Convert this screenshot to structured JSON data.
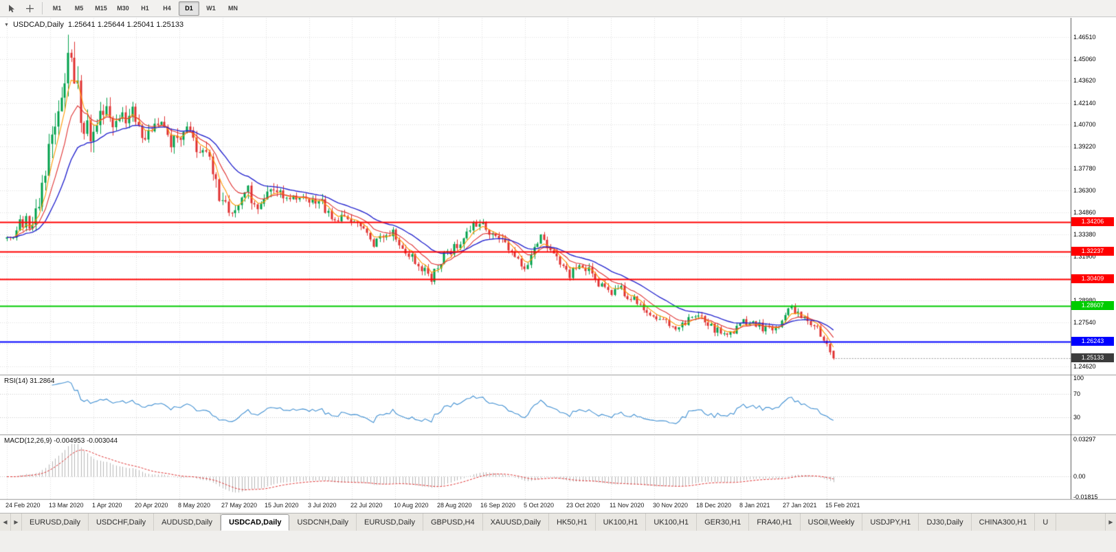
{
  "toolbar": {
    "tools": [
      {
        "name": "cursor"
      },
      {
        "name": "crosshair"
      }
    ],
    "timeframes": [
      {
        "label": "M1",
        "active": false
      },
      {
        "label": "M5",
        "active": false
      },
      {
        "label": "M15",
        "active": false
      },
      {
        "label": "M30",
        "active": false
      },
      {
        "label": "H1",
        "active": false
      },
      {
        "label": "H4",
        "active": false
      },
      {
        "label": "D1",
        "active": true
      },
      {
        "label": "W1",
        "active": false
      },
      {
        "label": "MN",
        "active": false
      }
    ]
  },
  "chart": {
    "title": "USDCAD,Daily",
    "ohlc_text": "1.25641 1.25644 1.25041 1.25133"
  },
  "rsi_panel": {
    "label": "RSI(14)",
    "value": "31.2864",
    "axis_labels": [
      "100",
      "70",
      "30"
    ]
  },
  "macd_panel": {
    "label": "MACD(12,26,9)",
    "values": "-0.004953 -0.003044",
    "axis_labels": [
      "0.03297",
      "0.00",
      "-0.01815"
    ]
  },
  "tab_bar": {
    "tabs": [
      "EURUSD,Daily",
      "USDCHF,Daily",
      "AUDUSD,Daily",
      "USDCAD,Daily",
      "USDCNH,Daily",
      "EURUSD,Daily",
      "GBPUSD,H4",
      "XAUUSD,Daily",
      "HK50,H1",
      "UK100,H1",
      "UK100,H1",
      "GER30,H1",
      "FRA40,H1",
      "USOil,Weekly",
      "USDJPY,H1",
      "DJ30,Daily",
      "CHINA300,H1",
      "U"
    ],
    "active_index": 3
  },
  "chart_data": {
    "type": "candlestick",
    "symbol": "USDCAD",
    "timeframe": "Daily",
    "title": "USDCAD,Daily",
    "last_ohlc": {
      "open": 1.25641,
      "high": 1.25644,
      "low": 1.25041,
      "close": 1.25133
    },
    "period_high": 1.4668,
    "peak_index": 19,
    "num_candles": 258,
    "visible_price_range": [
      1.2405,
      1.478
    ],
    "x_axis_dates": [
      "24 Feb 2020",
      "13 Mar 2020",
      "1 Apr 2020",
      "20 Apr 2020",
      "8 May 2020",
      "27 May 2020",
      "15 Jun 2020",
      "3 Jul 2020",
      "22 Jul 2020",
      "10 Aug 2020",
      "28 Aug 2020",
      "16 Sep 2020",
      "5 Oct 2020",
      "23 Oct 2020",
      "11 Nov 2020",
      "30 Nov 2020",
      "18 Dec 2020",
      "8 Jan 2021",
      "27 Jan 2021",
      "15 Feb 2021"
    ],
    "y_axis_ticks": [
      "1.46510",
      "1.45060",
      "1.43620",
      "1.42140",
      "1.40700",
      "1.39220",
      "1.37780",
      "1.36300",
      "1.34860",
      "1.33380",
      "1.31900",
      "1.30460",
      "1.28980",
      "1.27540",
      "1.26100",
      "1.24620"
    ],
    "price_path_anchors": [
      [
        0,
        1.331
      ],
      [
        4,
        1.339
      ],
      [
        8,
        1.343
      ],
      [
        11,
        1.365
      ],
      [
        14,
        1.399
      ],
      [
        17,
        1.433
      ],
      [
        19,
        1.448
      ],
      [
        21,
        1.442
      ],
      [
        23,
        1.416
      ],
      [
        25,
        1.406
      ],
      [
        27,
        1.399
      ],
      [
        29,
        1.415
      ],
      [
        31,
        1.42
      ],
      [
        33,
        1.405
      ],
      [
        36,
        1.409
      ],
      [
        39,
        1.416
      ],
      [
        42,
        1.397
      ],
      [
        45,
        1.403
      ],
      [
        48,
        1.408
      ],
      [
        51,
        1.394
      ],
      [
        54,
        1.399
      ],
      [
        57,
        1.402
      ],
      [
        60,
        1.39
      ],
      [
        63,
        1.379
      ],
      [
        65,
        1.366
      ],
      [
        67,
        1.355
      ],
      [
        69,
        1.349
      ],
      [
        72,
        1.354
      ],
      [
        75,
        1.362
      ],
      [
        78,
        1.354
      ],
      [
        81,
        1.359
      ],
      [
        84,
        1.365
      ],
      [
        87,
        1.357
      ],
      [
        90,
        1.361
      ],
      [
        93,
        1.354
      ],
      [
        96,
        1.358
      ],
      [
        99,
        1.351
      ],
      [
        102,
        1.342
      ],
      [
        105,
        1.345
      ],
      [
        108,
        1.34
      ],
      [
        111,
        1.336
      ],
      [
        114,
        1.327
      ],
      [
        117,
        1.332
      ],
      [
        120,
        1.336
      ],
      [
        123,
        1.326
      ],
      [
        126,
        1.319
      ],
      [
        129,
        1.31
      ],
      [
        132,
        1.305
      ],
      [
        135,
        1.316
      ],
      [
        138,
        1.324
      ],
      [
        141,
        1.33
      ],
      [
        144,
        1.337
      ],
      [
        146,
        1.3415
      ],
      [
        149,
        1.339
      ],
      [
        152,
        1.333
      ],
      [
        155,
        1.326
      ],
      [
        158,
        1.317
      ],
      [
        161,
        1.313
      ],
      [
        164,
        1.324
      ],
      [
        166,
        1.333
      ],
      [
        169,
        1.324
      ],
      [
        172,
        1.313
      ],
      [
        175,
        1.307
      ],
      [
        178,
        1.311
      ],
      [
        181,
        1.309
      ],
      [
        184,
        1.301
      ],
      [
        187,
        1.295
      ],
      [
        190,
        1.299
      ],
      [
        193,
        1.293
      ],
      [
        196,
        1.288
      ],
      [
        199,
        1.284
      ],
      [
        202,
        1.28
      ],
      [
        205,
        1.276
      ],
      [
        208,
        1.273
      ],
      [
        211,
        1.275
      ],
      [
        214,
        1.279
      ],
      [
        217,
        1.276
      ],
      [
        220,
        1.271
      ],
      [
        223,
        1.268
      ],
      [
        226,
        1.27
      ],
      [
        229,
        1.275
      ],
      [
        232,
        1.276
      ],
      [
        235,
        1.272
      ],
      [
        238,
        1.27
      ],
      [
        241,
        1.276
      ],
      [
        244,
        1.285
      ],
      [
        246,
        1.282
      ],
      [
        249,
        1.276
      ],
      [
        251,
        1.272
      ],
      [
        253,
        1.268
      ],
      [
        255,
        1.263
      ],
      [
        257,
        1.2513
      ]
    ],
    "volatility_anchors": [
      [
        0,
        0.007
      ],
      [
        8,
        0.011
      ],
      [
        14,
        0.018
      ],
      [
        20,
        0.021
      ],
      [
        26,
        0.015
      ],
      [
        34,
        0.011
      ],
      [
        44,
        0.0095
      ],
      [
        58,
        0.009
      ],
      [
        64,
        0.0115
      ],
      [
        72,
        0.0085
      ],
      [
        90,
        0.007
      ],
      [
        110,
        0.0062
      ],
      [
        130,
        0.006
      ],
      [
        150,
        0.0056
      ],
      [
        170,
        0.0056
      ],
      [
        190,
        0.005
      ],
      [
        210,
        0.0046
      ],
      [
        230,
        0.0046
      ],
      [
        250,
        0.0046
      ],
      [
        257,
        0.004
      ]
    ],
    "candle_colors": {
      "up": "#00a14b",
      "down": "#e03030"
    },
    "moving_averages": [
      {
        "name": "fast",
        "period": 5,
        "color": "#ff9800"
      },
      {
        "name": "medium",
        "period": 11,
        "color": "#e03030"
      },
      {
        "name": "slow",
        "period": 24,
        "color": "#2626cf"
      }
    ],
    "horizontal_lines": [
      {
        "price": 1.34206,
        "label": "1.34206",
        "color": "#ff0000",
        "width": 2
      },
      {
        "price": 1.32237,
        "label": "1.32237",
        "color": "#ff0000",
        "width": 2
      },
      {
        "price": 1.30409,
        "label": "1.30409",
        "color": "#ff0000",
        "width": 2
      },
      {
        "price": 1.28607,
        "label": "1.28607",
        "color": "#00cc00",
        "width": 2
      },
      {
        "price": 1.26243,
        "label": "1.26243",
        "color": "#0000ff",
        "width": 2
      }
    ],
    "current_price": {
      "value": 1.25133,
      "label": "1.25133",
      "badge_color": "#3c3c3c"
    },
    "indicators": [
      {
        "name": "RSI",
        "params": [
          14
        ],
        "current": 31.2864,
        "levels": [
          70,
          30
        ],
        "range": [
          0,
          100
        ],
        "line_color": "#3f8fd2"
      },
      {
        "name": "MACD",
        "params": [
          12,
          26,
          9
        ],
        "main": -0.004953,
        "signal": -0.003044,
        "axis_max": 0.03297,
        "axis_min": -0.01815,
        "histogram_color": "#b6b6b6",
        "signal_color": "#e03030"
      }
    ]
  }
}
